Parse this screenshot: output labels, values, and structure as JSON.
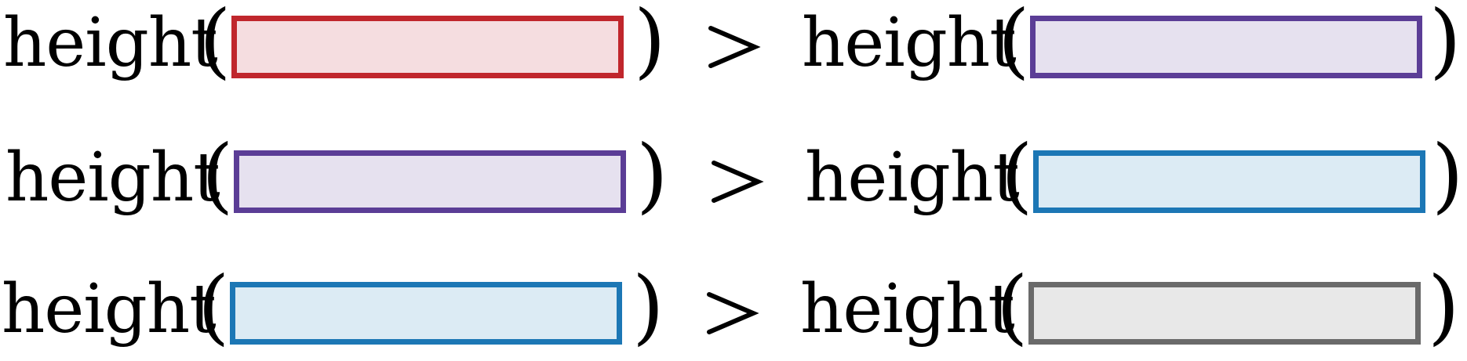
{
  "function_label": "height",
  "open_paren": "(",
  "close_paren": ")",
  "comparison_symbol": ">",
  "colors": {
    "red": {
      "border": "#c0262c",
      "fill": "#f5dde0"
    },
    "purple": {
      "border": "#5b3d96",
      "fill": "#e6e1ef"
    },
    "blue": {
      "border": "#1c77b5",
      "fill": "#dcebf4"
    },
    "gray": {
      "border": "#6a6a6a",
      "fill": "#e8e8e8"
    }
  },
  "rows": [
    {
      "left": "red",
      "right": "purple"
    },
    {
      "left": "purple",
      "right": "blue"
    },
    {
      "left": "blue",
      "right": "gray"
    }
  ]
}
